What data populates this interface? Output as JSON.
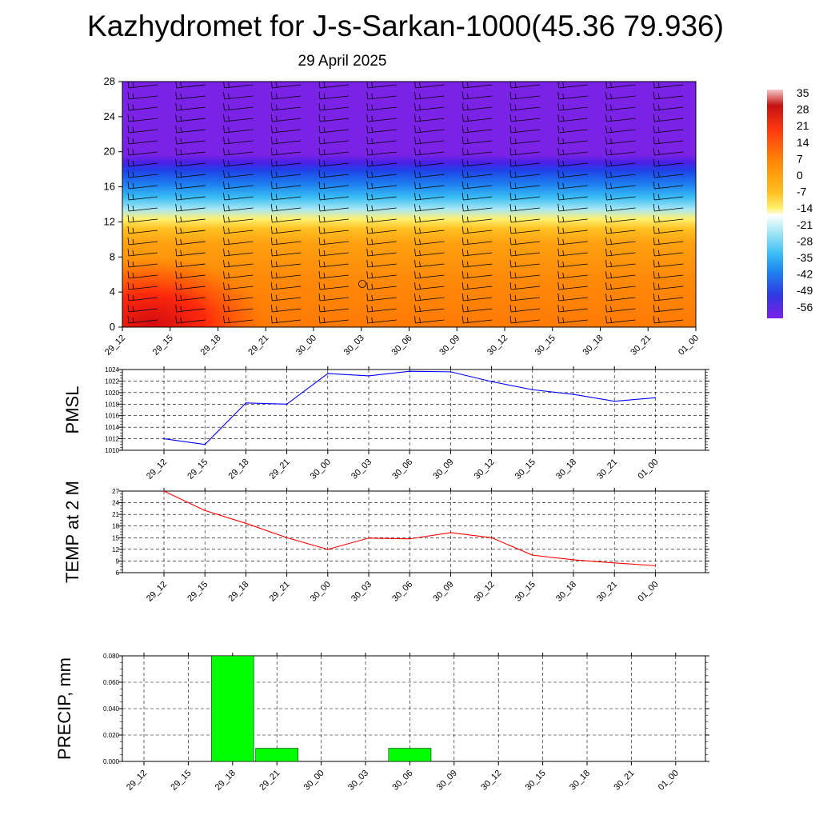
{
  "title": "Kazhydromet for J-s-Sarkan-1000(45.36 79.936)",
  "subtitle": "29 April 2025",
  "time_labels": [
    "29_12",
    "29_15",
    "29_18",
    "29_21",
    "30_00",
    "30_03",
    "30_06",
    "30_09",
    "30_12",
    "30_15",
    "30_18",
    "30_21",
    "01_00"
  ],
  "colors": {
    "pmsl_line": "#0000ff",
    "temp_line": "#ff0000",
    "precip_bar": "#00ff00",
    "grid": "#000000"
  },
  "chart_data": [
    {
      "type": "heatmap",
      "y_ticks": [
        "0",
        "4",
        "8",
        "12",
        "16",
        "20",
        "24",
        "28"
      ],
      "ylim": [
        0,
        28
      ],
      "x": [
        "29_12",
        "29_15",
        "29_18",
        "29_21",
        "30_00",
        "30_03",
        "30_06",
        "30_09",
        "30_12",
        "30_15",
        "30_18",
        "30_21",
        "01_00"
      ],
      "colorbar_labels": [
        "35",
        "28",
        "21",
        "14",
        "7",
        "0",
        "-7",
        "-14",
        "-21",
        "-28",
        "-35",
        "-42",
        "-49",
        "-56"
      ],
      "colorbar_colors": [
        "#f5c8c8",
        "#c41010",
        "#e61a12",
        "#ff4a08",
        "#ff7a08",
        "#ff9a10",
        "#ffc020",
        "#fff070",
        "#a8e8f4",
        "#38bcf4",
        "#1e80f0",
        "#3038e0",
        "#4a20e6",
        "#7a22e6"
      ],
      "wind_barbs": true
    },
    {
      "type": "line",
      "ylabel": "PMSL",
      "x": [
        "29_12",
        "29_15",
        "29_18",
        "29_21",
        "30_00",
        "30_03",
        "30_06",
        "30_09",
        "30_12",
        "30_15",
        "30_18",
        "30_21",
        "01_00"
      ],
      "series": [
        {
          "values": [
            1012.0,
            1011.0,
            1018.2,
            1018.0,
            1023.3,
            1022.9,
            1023.7,
            1023.6,
            1021.9,
            1020.5,
            1019.7,
            1018.5,
            1019.1
          ]
        }
      ],
      "y_ticks": [
        "1010",
        "1012",
        "1014",
        "1016",
        "1018",
        "1020",
        "1022",
        "1024"
      ],
      "ylim": [
        1010,
        1024
      ],
      "grid": true
    },
    {
      "type": "line",
      "ylabel": "TEMP at 2 M",
      "x": [
        "29_12",
        "29_15",
        "29_18",
        "29_21",
        "30_00",
        "30_03",
        "30_06",
        "30_09",
        "30_12",
        "30_15",
        "30_18",
        "30_21",
        "01_00"
      ],
      "series": [
        {
          "values": [
            27.0,
            22.0,
            18.7,
            15.0,
            12.0,
            14.9,
            14.7,
            16.3,
            15.0,
            10.5,
            9.3,
            8.5,
            7.8
          ]
        }
      ],
      "y_ticks": [
        "6",
        "9",
        "12",
        "15",
        "18",
        "21",
        "24",
        "27"
      ],
      "ylim": [
        6,
        27
      ],
      "grid": true
    },
    {
      "type": "bar",
      "ylabel": "PRECIP, mm",
      "categories": [
        "29_12",
        "29_15",
        "29_18",
        "29_21",
        "30_00",
        "30_03",
        "30_06",
        "30_09",
        "30_12",
        "30_15",
        "30_18",
        "30_21",
        "01_00"
      ],
      "values": [
        0,
        0,
        0.08,
        0.01,
        0,
        0,
        0.01,
        0,
        0,
        0,
        0,
        0,
        0
      ],
      "y_ticks": [
        "0.000",
        "0.020",
        "0.040",
        "0.060",
        "0.080"
      ],
      "ylim": [
        0,
        0.08
      ],
      "grid": true
    }
  ]
}
